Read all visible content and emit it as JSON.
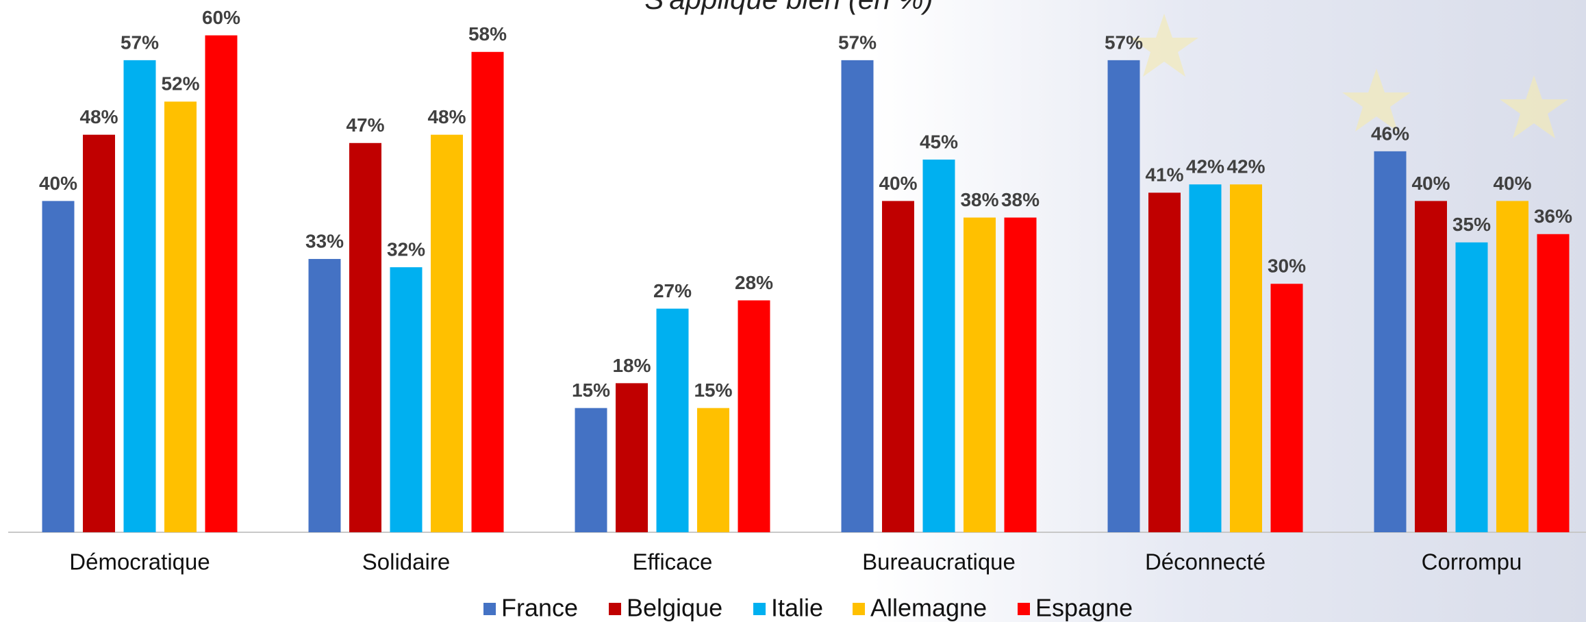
{
  "chart_data": {
    "type": "bar",
    "title": "S'applique bien (en %)",
    "categories": [
      "Démocratique",
      "Solidaire",
      "Efficace",
      "Bureaucratique",
      "Déconnecté",
      "Corrompu"
    ],
    "series": [
      {
        "name": "France",
        "color": "#4472c4",
        "values": [
          40,
          33,
          15,
          57,
          57,
          46
        ],
        "value_labels": [
          "40%",
          "33%",
          "15%",
          "57%",
          "57%",
          "46%"
        ]
      },
      {
        "name": "Belgique",
        "color": "#c00000",
        "values": [
          48,
          47,
          18,
          40,
          41,
          40
        ],
        "value_labels": [
          "48%",
          "47%",
          "18%",
          "40%",
          "41%",
          "40%"
        ]
      },
      {
        "name": "Italie",
        "color": "#00b0f0",
        "values": [
          57,
          32,
          27,
          45,
          42,
          35
        ],
        "value_labels": [
          "57%",
          "32%",
          "27%",
          "45%",
          "42%",
          "35%"
        ]
      },
      {
        "name": "Allemagne",
        "color": "#ffc000",
        "values": [
          52,
          48,
          15,
          38,
          42,
          40
        ],
        "value_labels": [
          "52%",
          "48%",
          "15%",
          "38%",
          "42%",
          "40%"
        ]
      },
      {
        "name": "Espagne",
        "color": "#ff0000",
        "values": [
          60,
          58,
          28,
          38,
          30,
          36
        ],
        "value_labels": [
          "60%",
          "58%",
          "28%",
          "38%",
          "30%",
          "36%"
        ]
      }
    ],
    "legend": "bottom"
  }
}
